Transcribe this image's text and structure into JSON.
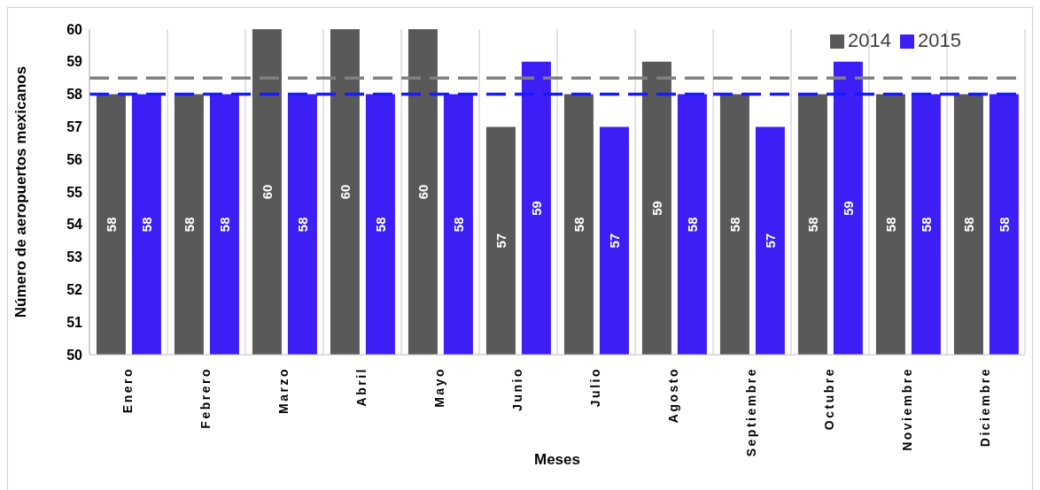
{
  "chart_data": {
    "type": "bar",
    "xlabel": "Meses",
    "ylabel": "Número de aeropuertos mexicanos",
    "categories": [
      "Enero",
      "Febrero",
      "Marzo",
      "Abril",
      "Mayo",
      "Junio",
      "Julio",
      "Agosto",
      "Septiembre",
      "Octubre",
      "Noviembre",
      "Diciembre"
    ],
    "series": [
      {
        "name": "2014",
        "color": "#595959",
        "values": [
          58,
          58,
          60,
          60,
          60,
          57,
          58,
          59,
          58,
          58,
          58,
          58
        ]
      },
      {
        "name": "2015",
        "color": "#3d1ff5",
        "values": [
          58,
          58,
          58,
          58,
          58,
          59,
          57,
          58,
          57,
          59,
          58,
          58
        ]
      }
    ],
    "ylim": [
      50,
      60
    ],
    "yticks": [
      50,
      51,
      52,
      53,
      54,
      55,
      56,
      57,
      58,
      59,
      60
    ],
    "ref_lines": [
      {
        "axis": "y",
        "value": 58.5,
        "color": "#808080",
        "line_style": "dashed"
      },
      {
        "axis": "y",
        "value": 58,
        "color": "#1a1aff",
        "line_style": "dashed"
      }
    ],
    "data_labels": true,
    "grid": "x",
    "legend": "top right"
  }
}
